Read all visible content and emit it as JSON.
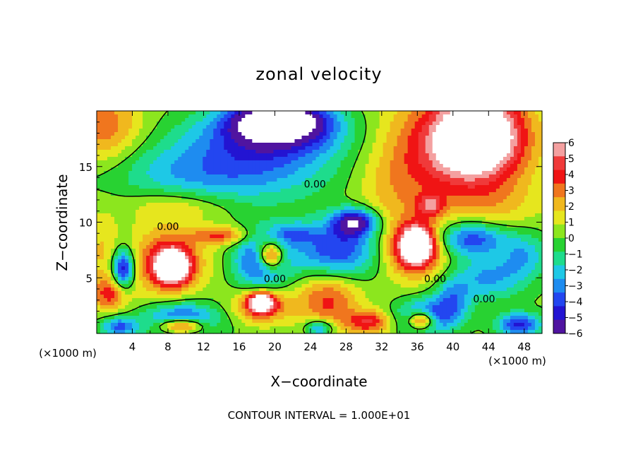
{
  "chart_data": {
    "type": "heatmap",
    "title": "zonal velocity",
    "xlabel": "X−coordinate",
    "ylabel": "Z−coordinate",
    "x_unit_left": "(×1000 m)",
    "x_unit_right": "(×1000 m)",
    "xlim": [
      0,
      50
    ],
    "ylim": [
      0,
      20
    ],
    "xticks": [
      4,
      8,
      12,
      16,
      20,
      24,
      28,
      32,
      36,
      40,
      44,
      48
    ],
    "yticks": [
      5,
      10,
      15
    ],
    "footer": "CONTOUR INTERVAL = 1.000E+01",
    "contour_labels": [
      {
        "text": "0.00",
        "x": 24.5,
        "y": 13.1
      },
      {
        "text": "0.00",
        "x": 8.0,
        "y": 9.3
      },
      {
        "text": "0.00",
        "x": 20.0,
        "y": 4.6
      },
      {
        "text": "0.00",
        "x": 38.0,
        "y": 4.6
      },
      {
        "text": "0.00",
        "x": 43.5,
        "y": 2.8
      }
    ],
    "colorbar": {
      "labels": [
        "6",
        "5",
        "4",
        "3",
        "2",
        "1",
        "0",
        "−1",
        "−2",
        "−3",
        "−4",
        "−5",
        "−6"
      ],
      "range": [
        -6,
        6
      ],
      "colors": [
        "#f4a0a0",
        "#f03a3a",
        "#f01414",
        "#f0761e",
        "#f0b81e",
        "#e6e61e",
        "#8ce61e",
        "#28d232",
        "#1edc8c",
        "#1ec8e6",
        "#1e8cf0",
        "#2346f0",
        "#2314d2",
        "#5014a0"
      ]
    },
    "blobs": [
      {
        "x": 1.0,
        "y": 18.5,
        "rx": 4.0,
        "ry": 3.5,
        "v": 3.0
      },
      {
        "x": 0.5,
        "y": 7.5,
        "rx": 2.0,
        "ry": 3.5,
        "v": 1.5
      },
      {
        "x": 3.0,
        "y": 5.8,
        "rx": 1.2,
        "ry": 1.8,
        "v": -6.0
      },
      {
        "x": 1.5,
        "y": 3.5,
        "rx": 2.0,
        "ry": 1.5,
        "v": 3.5
      },
      {
        "x": 14.0,
        "y": 14.5,
        "rx": 12.0,
        "ry": 3.0,
        "v": -3.5
      },
      {
        "x": 20.0,
        "y": 18.0,
        "rx": 8.0,
        "ry": 2.5,
        "v": -5.0
      },
      {
        "x": 20.5,
        "y": 19.2,
        "rx": 5.0,
        "ry": 1.6,
        "v": -7.0
      },
      {
        "x": 9.0,
        "y": 11.5,
        "rx": 6.0,
        "ry": 1.5,
        "v": 1.8
      },
      {
        "x": 8.0,
        "y": 6.5,
        "rx": 4.0,
        "ry": 3.0,
        "v": 4.0
      },
      {
        "x": 8.5,
        "y": 6.0,
        "rx": 1.8,
        "ry": 1.4,
        "v": 8.0
      },
      {
        "x": 14.0,
        "y": 8.8,
        "rx": 3.0,
        "ry": 0.8,
        "v": 3.5
      },
      {
        "x": 18.5,
        "y": 6.5,
        "rx": 3.0,
        "ry": 2.5,
        "v": -5.0
      },
      {
        "x": 19.5,
        "y": 7.0,
        "rx": 1.5,
        "ry": 1.3,
        "v": 7.0
      },
      {
        "x": 27.0,
        "y": 7.5,
        "rx": 5.0,
        "ry": 2.5,
        "v": -4.5
      },
      {
        "x": 29.0,
        "y": 10.0,
        "rx": 2.5,
        "ry": 1.2,
        "v": -6.0
      },
      {
        "x": 22.0,
        "y": 9.0,
        "rx": 2.5,
        "ry": 1.0,
        "v": -2.5
      },
      {
        "x": 26.0,
        "y": 3.0,
        "rx": 3.5,
        "ry": 2.5,
        "v": 3.5
      },
      {
        "x": 18.5,
        "y": 2.5,
        "rx": 3.0,
        "ry": 1.5,
        "v": 4.0
      },
      {
        "x": 18.5,
        "y": 2.8,
        "rx": 1.3,
        "ry": 0.8,
        "v": 7.0
      },
      {
        "x": 30.5,
        "y": 1.0,
        "rx": 2.5,
        "ry": 1.0,
        "v": 4.0
      },
      {
        "x": 9.5,
        "y": 1.2,
        "rx": 4.0,
        "ry": 1.5,
        "v": -5.0
      },
      {
        "x": 9.5,
        "y": 0.7,
        "rx": 2.5,
        "ry": 0.7,
        "v": 7.0
      },
      {
        "x": 2.5,
        "y": 0.6,
        "rx": 2.0,
        "ry": 0.9,
        "v": -4.0
      },
      {
        "x": 25.0,
        "y": 0.5,
        "rx": 1.5,
        "ry": 0.7,
        "v": -4.0
      },
      {
        "x": 37.0,
        "y": 1.5,
        "rx": 3.0,
        "ry": 1.5,
        "v": -5.0
      },
      {
        "x": 36.5,
        "y": 1.2,
        "rx": 1.5,
        "ry": 0.8,
        "v": 7.0
      },
      {
        "x": 35.5,
        "y": 7.5,
        "rx": 3.5,
        "ry": 2.5,
        "v": 4.5
      },
      {
        "x": 36.0,
        "y": 8.0,
        "rx": 1.8,
        "ry": 1.6,
        "v": 7.0
      },
      {
        "x": 37.5,
        "y": 11.5,
        "rx": 1.5,
        "ry": 1.0,
        "v": 3.5
      },
      {
        "x": 40.0,
        "y": 16.5,
        "rx": 8.0,
        "ry": 5.0,
        "v": 4.5
      },
      {
        "x": 43.0,
        "y": 18.0,
        "rx": 4.5,
        "ry": 3.5,
        "v": 7.0
      },
      {
        "x": 42.0,
        "y": 8.5,
        "rx": 4.0,
        "ry": 1.5,
        "v": -4.5
      },
      {
        "x": 44.0,
        "y": 5.0,
        "rx": 4.0,
        "ry": 2.0,
        "v": -3.0
      },
      {
        "x": 48.0,
        "y": 7.0,
        "rx": 2.5,
        "ry": 2.0,
        "v": -2.5
      },
      {
        "x": 40.0,
        "y": 3.0,
        "rx": 2.0,
        "ry": 2.0,
        "v": -3.0
      },
      {
        "x": 47.5,
        "y": 0.8,
        "rx": 2.5,
        "ry": 1.0,
        "v": -5.0
      },
      {
        "x": 45.0,
        "y": 11.5,
        "rx": 5.0,
        "ry": 2.0,
        "v": 1.0
      },
      {
        "x": 33.0,
        "y": 12.5,
        "rx": 4.0,
        "ry": 3.5,
        "v": 1.2
      }
    ]
  }
}
